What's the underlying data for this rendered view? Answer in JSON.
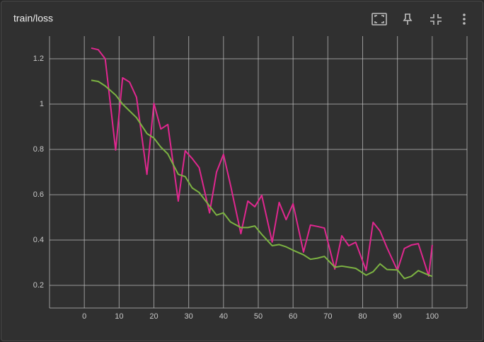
{
  "chart_data": {
    "type": "line",
    "title": "train/loss",
    "x": [
      2,
      4,
      6,
      9,
      11,
      13,
      15,
      18,
      20,
      22,
      24,
      27,
      29,
      31,
      33,
      36,
      38,
      40,
      42,
      45,
      47,
      49,
      51,
      54,
      56,
      58,
      60,
      63,
      65,
      67,
      69,
      72,
      74,
      76,
      78,
      81,
      83,
      85,
      87,
      90,
      92,
      94,
      96,
      99,
      100
    ],
    "series": [
      {
        "color": "#e0278f",
        "values": [
          1.247,
          1.24,
          1.2,
          0.797,
          1.116,
          1.097,
          1.03,
          0.69,
          1.003,
          0.89,
          0.91,
          0.572,
          0.794,
          0.76,
          0.72,
          0.52,
          0.7,
          0.778,
          0.644,
          0.428,
          0.572,
          0.547,
          0.597,
          0.391,
          0.566,
          0.49,
          0.56,
          0.347,
          0.466,
          0.46,
          0.453,
          0.272,
          0.419,
          0.375,
          0.39,
          0.266,
          0.478,
          0.44,
          0.366,
          0.266,
          0.363,
          0.378,
          0.384,
          0.241,
          0.378
        ]
      },
      {
        "color": "#7cb342",
        "values": [
          1.105,
          1.1,
          1.08,
          1.04,
          1.0,
          0.97,
          0.94,
          0.87,
          0.85,
          0.81,
          0.78,
          0.69,
          0.68,
          0.63,
          0.61,
          0.55,
          0.51,
          0.52,
          0.48,
          0.455,
          0.455,
          0.462,
          0.425,
          0.375,
          0.38,
          0.37,
          0.355,
          0.335,
          0.315,
          0.32,
          0.328,
          0.28,
          0.285,
          0.28,
          0.275,
          0.245,
          0.26,
          0.295,
          0.27,
          0.268,
          0.23,
          0.24,
          0.265,
          0.245,
          0.24
        ]
      }
    ],
    "xlim": [
      -10,
      110
    ],
    "xticks": [
      0,
      10,
      20,
      30,
      40,
      50,
      60,
      70,
      80,
      90,
      100
    ],
    "ylim": [
      0.1,
      1.3
    ],
    "yticks": [
      0.2,
      0.4,
      0.6,
      0.8,
      1,
      1.2
    ],
    "grid": true
  }
}
